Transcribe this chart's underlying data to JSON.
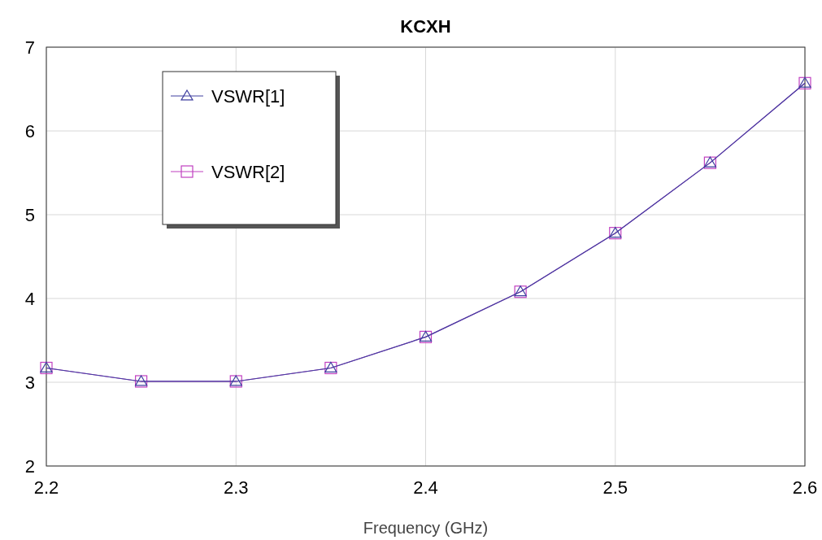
{
  "chart_data": {
    "type": "line",
    "title": "KCXH",
    "xlabel": "Frequency (GHz)",
    "x": [
      2.2,
      2.25,
      2.3,
      2.35,
      2.4,
      2.45,
      2.5,
      2.55,
      2.6
    ],
    "series": [
      {
        "name": "VSWR[1]",
        "color": "#4040a0",
        "marker": "triangle",
        "values": [
          3.17,
          3.01,
          3.01,
          3.17,
          3.54,
          4.08,
          4.78,
          5.62,
          6.57
        ]
      },
      {
        "name": "VSWR[2]",
        "color": "#c040c0",
        "marker": "square",
        "values": [
          3.17,
          3.01,
          3.01,
          3.17,
          3.54,
          4.08,
          4.78,
          5.62,
          6.57
        ]
      }
    ],
    "xlim": [
      2.2,
      2.6
    ],
    "xticks": [
      2.2,
      2.3,
      2.4,
      2.5,
      2.6
    ],
    "ylim": [
      2,
      7
    ],
    "yticks": [
      2,
      3,
      4,
      5,
      6,
      7
    ],
    "grid": true,
    "legend": "top left",
    "line_style": "solid"
  }
}
